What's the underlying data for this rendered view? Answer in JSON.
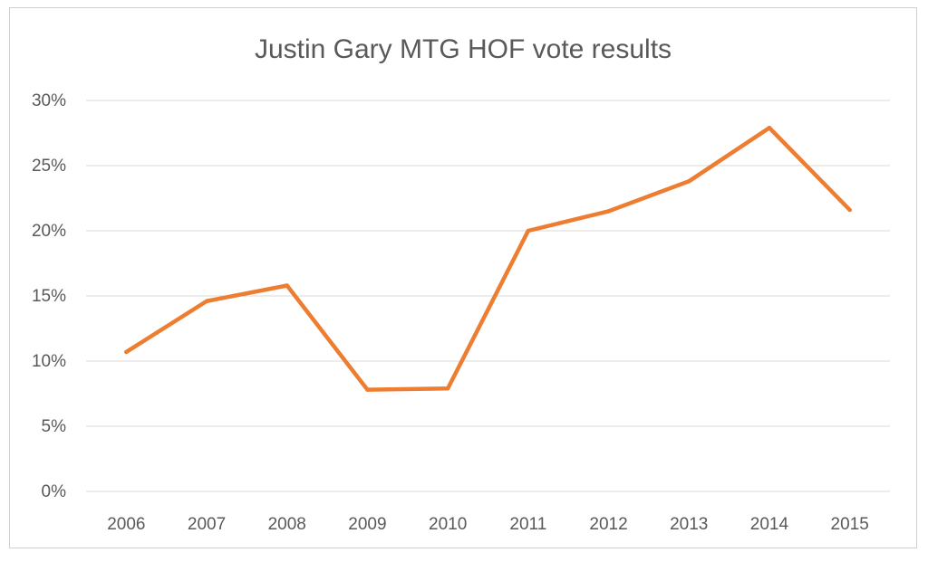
{
  "chart_data": {
    "type": "line",
    "title": "Justin Gary MTG HOF vote results",
    "xlabel": "",
    "ylabel": "",
    "categories": [
      "2006",
      "2007",
      "2008",
      "2009",
      "2010",
      "2011",
      "2012",
      "2013",
      "2014",
      "2015"
    ],
    "series": [
      {
        "values": [
          10.7,
          14.6,
          15.8,
          7.8,
          7.9,
          20.0,
          21.5,
          23.8,
          27.9,
          21.6
        ],
        "color": "#ED7D31"
      }
    ],
    "ylim": [
      0,
      30
    ],
    "yticks": [
      0,
      5,
      10,
      15,
      20,
      25,
      30
    ],
    "ytick_labels": [
      "0%",
      "5%",
      "10%",
      "15%",
      "20%",
      "25%",
      "30%"
    ],
    "grid": true,
    "legend": "none"
  }
}
